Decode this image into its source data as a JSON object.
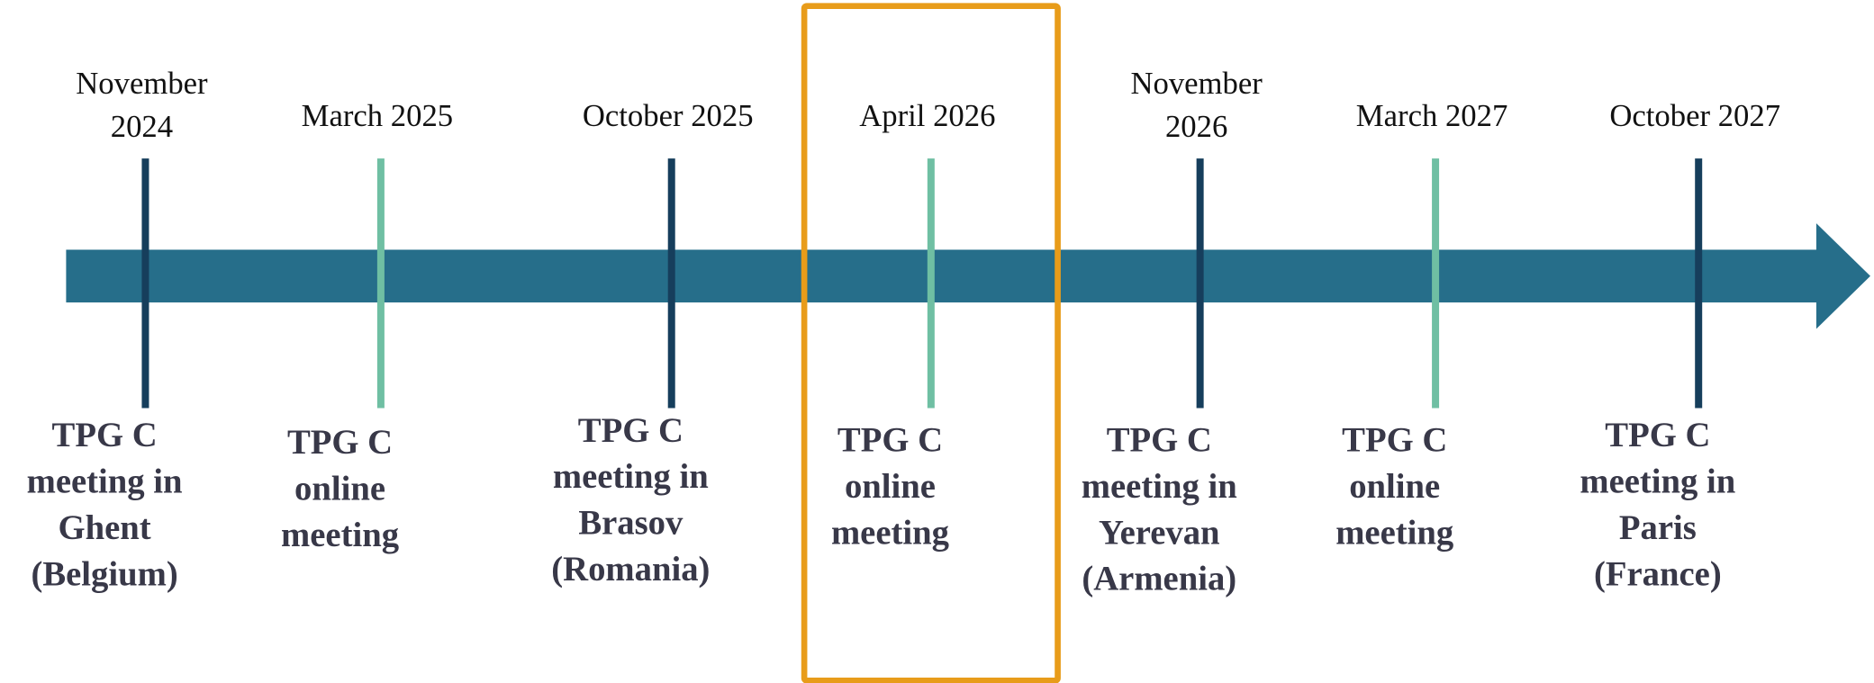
{
  "events": [
    {
      "date": [
        "November",
        "2024"
      ],
      "label": [
        "TPG C",
        "meeting in",
        "Ghent",
        "(Belgium)"
      ],
      "color": "#163e5c"
    },
    {
      "date": [
        "March 2025"
      ],
      "label": [
        "TPG C",
        "online",
        "meeting"
      ],
      "color": "#6fbfa3"
    },
    {
      "date": [
        "October 2025"
      ],
      "label": [
        "TPG C",
        "meeting in",
        "Brasov",
        "(Romania)"
      ],
      "color": "#163e5c"
    },
    {
      "date": [
        "April 2026"
      ],
      "label": [
        "TPG C",
        "online",
        "meeting"
      ],
      "color": "#6fbfa3"
    },
    {
      "date": [
        "November",
        "2026"
      ],
      "label": [
        "TPG C",
        "meeting in",
        "Yerevan",
        "(Armenia)"
      ],
      "color": "#163e5c"
    },
    {
      "date": [
        "March 2027"
      ],
      "label": [
        "TPG C",
        "online",
        "meeting"
      ],
      "color": "#6fbfa3"
    },
    {
      "date": [
        "October 2027"
      ],
      "label": [
        "TPG C",
        "meeting in",
        "Paris",
        "(France)"
      ],
      "color": "#163e5c"
    }
  ]
}
